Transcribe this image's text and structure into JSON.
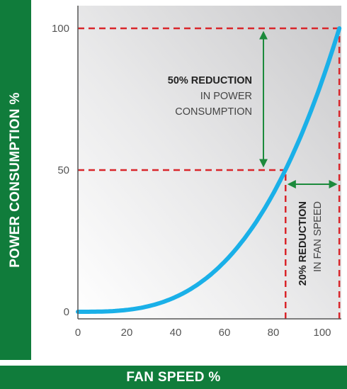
{
  "colors": {
    "label_bar": "#107c3b",
    "curve": "#1ab0e8",
    "reference_lines": "#d9262b",
    "arrows": "#1c8a3c"
  },
  "chart_data": {
    "type": "line",
    "xlabel": "FAN SPEED %",
    "ylabel": "POWER CONSUMPTION %",
    "xlim": [
      0,
      110
    ],
    "ylim": [
      0,
      105
    ],
    "x_ticks": [
      "0",
      "20",
      "40",
      "60",
      "80",
      "100"
    ],
    "y_ticks": [
      "0",
      "50",
      "100"
    ],
    "series": [
      {
        "curve": "cubic fan law",
        "x": [
          0,
          10,
          20,
          30,
          40,
          50,
          60,
          70,
          80,
          85,
          90,
          100,
          107
        ],
        "y": [
          0,
          0.1,
          0.7,
          2.2,
          5.2,
          10.2,
          17.6,
          28,
          41.8,
          50,
          59.5,
          81.6,
          100
        ]
      }
    ],
    "reference_lines": [
      {
        "orientation": "horizontal",
        "y": 100,
        "x_to": 107
      },
      {
        "orientation": "horizontal",
        "y": 50,
        "x_to": 85
      },
      {
        "orientation": "vertical",
        "x": 85,
        "y_to": 50
      },
      {
        "orientation": "vertical",
        "x": 107,
        "y_to": 100
      }
    ],
    "annotations": [
      {
        "bold": "50% REDUCTION",
        "lines": [
          "IN POWER",
          "CONSUMPTION"
        ]
      },
      {
        "bold": "20% REDUCTION",
        "lines": [
          "IN FAN SPEED"
        ]
      }
    ]
  }
}
